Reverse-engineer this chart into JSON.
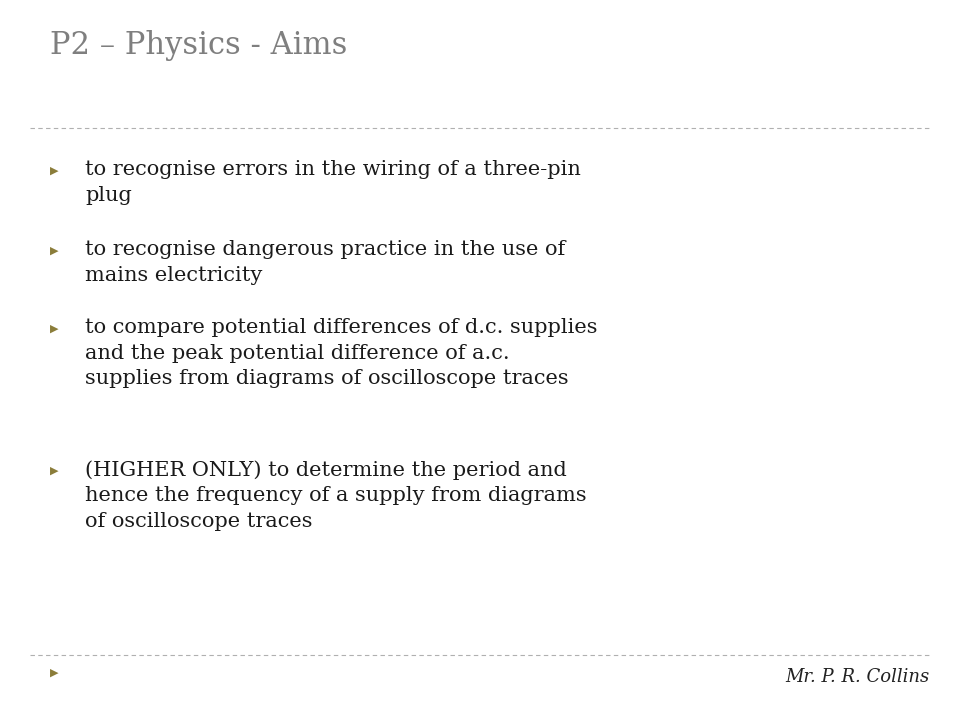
{
  "title": "P2 – Physics - Aims",
  "title_color": "#7f7f7f",
  "title_fontsize": 22,
  "background_color": "#ffffff",
  "separator_color": "#b0b0b0",
  "bullet_color": "#8b7d3a",
  "bullet_char": "▶",
  "body_color": "#1a1a1a",
  "body_fontsize": 15,
  "footer_text": "Mr. P. R. Collins",
  "footer_fontsize": 13,
  "footer_color": "#222222",
  "bullets": [
    "to recognise errors in the wiring of a three-pin\nplug",
    "to recognise dangerous practice in the use of\nmains electricity",
    "to compare potential differences of d.c. supplies\nand the peak potential difference of a.c.\nsupplies from diagrams of oscilloscope traces",
    "(HIGHER ONLY) to determine the period and\nhence the frequency of a supply from diagrams\nof oscilloscope traces"
  ],
  "figwidth": 9.6,
  "figheight": 7.2,
  "dpi": 100
}
